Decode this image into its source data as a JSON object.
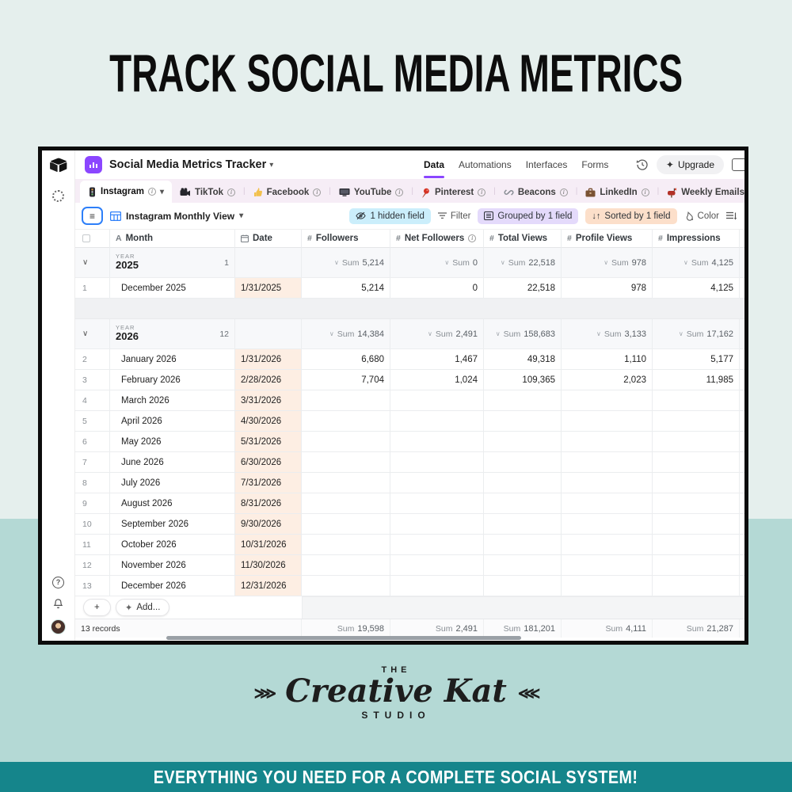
{
  "title": "TRACK SOCIAL MEDIA METRICS",
  "banner": "EVERYTHING YOU NEED FOR A COMPLETE SOCIAL SYSTEM!",
  "logo": {
    "the": "THE",
    "name": "Creative Kat",
    "studio": "STUDIO"
  },
  "colors": {
    "accent_purple": "#8b46ff",
    "accent_blue": "#2d7ff9",
    "teal_banner": "#15858b",
    "bg_top": "#e5efed",
    "bg_bottom": "#b4d9d5",
    "pill_hidden": "#cbeefb",
    "pill_grouped": "#e4dafb",
    "pill_sorted": "#fcdfca",
    "date_cell": "#fdeee3"
  },
  "app": {
    "name": "Social Media Metrics Tracker",
    "nav": [
      "Data",
      "Automations",
      "Interfaces",
      "Forms"
    ],
    "active_nav": "Data",
    "history_icon": "history-icon",
    "upgrade_label": "Upgrade",
    "tabs": [
      {
        "label": "Instagram",
        "icon": "instagram-icon",
        "active": true
      },
      {
        "label": "TikTok",
        "icon": "tiktok-icon"
      },
      {
        "label": "Facebook",
        "icon": "facebook-icon"
      },
      {
        "label": "YouTube",
        "icon": "youtube-icon"
      },
      {
        "label": "Pinterest",
        "icon": "pinterest-icon"
      },
      {
        "label": "Beacons",
        "icon": "beacons-icon"
      },
      {
        "label": "LinkedIn",
        "icon": "linkedin-icon"
      },
      {
        "label": "Weekly Emails",
        "icon": "weekly-emails-icon"
      }
    ],
    "toolbar": {
      "view_name": "Instagram Monthly View",
      "hidden_fields": "1 hidden field",
      "filter": "Filter",
      "grouped": "Grouped by 1 field",
      "sorted": "Sorted by 1 field",
      "color": "Color"
    },
    "table": {
      "columns": [
        {
          "label": "Month",
          "icon": "text-icon"
        },
        {
          "label": "Date",
          "icon": "calendar-icon"
        },
        {
          "label": "Followers",
          "icon": "number-icon"
        },
        {
          "label": "Net Followers",
          "icon": "number-icon",
          "info": true
        },
        {
          "label": "Total Views",
          "icon": "number-icon"
        },
        {
          "label": "Profile Views",
          "icon": "number-icon"
        },
        {
          "label": "Impressions",
          "icon": "number-icon"
        }
      ],
      "groups": [
        {
          "group_label": "YEAR",
          "year": "2025",
          "count": "1",
          "sums": [
            "Sum 5,214",
            "Sum 0",
            "Sum 22,518",
            "Sum 978",
            "Sum 4,125"
          ],
          "rows": [
            {
              "num": "1",
              "month": "December 2025",
              "date": "1/31/2025",
              "values": [
                "5,214",
                "0",
                "22,518",
                "978",
                "4,125"
              ]
            }
          ]
        },
        {
          "group_label": "YEAR",
          "year": "2026",
          "count": "12",
          "sums": [
            "Sum 14,384",
            "Sum 2,491",
            "Sum 158,683",
            "Sum 3,133",
            "Sum 17,162"
          ],
          "rows": [
            {
              "num": "2",
              "month": "January 2026",
              "date": "1/31/2026",
              "values": [
                "6,680",
                "1,467",
                "49,318",
                "1,110",
                "5,177"
              ]
            },
            {
              "num": "3",
              "month": "February 2026",
              "date": "2/28/2026",
              "values": [
                "7,704",
                "1,024",
                "109,365",
                "2,023",
                "11,985"
              ]
            },
            {
              "num": "4",
              "month": "March 2026",
              "date": "3/31/2026",
              "values": [
                "",
                "",
                "",
                "",
                ""
              ]
            },
            {
              "num": "5",
              "month": "April 2026",
              "date": "4/30/2026",
              "values": [
                "",
                "",
                "",
                "",
                ""
              ]
            },
            {
              "num": "6",
              "month": "May 2026",
              "date": "5/31/2026",
              "values": [
                "",
                "",
                "",
                "",
                ""
              ]
            },
            {
              "num": "7",
              "month": "June 2026",
              "date": "6/30/2026",
              "values": [
                "",
                "",
                "",
                "",
                ""
              ]
            },
            {
              "num": "8",
              "month": "July 2026",
              "date": "7/31/2026",
              "values": [
                "",
                "",
                "",
                "",
                ""
              ]
            },
            {
              "num": "9",
              "month": "August 2026",
              "date": "8/31/2026",
              "values": [
                "",
                "",
                "",
                "",
                ""
              ]
            },
            {
              "num": "10",
              "month": "September 2026",
              "date": "9/30/2026",
              "values": [
                "",
                "",
                "",
                "",
                ""
              ]
            },
            {
              "num": "11",
              "month": "October 2026",
              "date": "10/31/2026",
              "values": [
                "",
                "",
                "",
                "",
                ""
              ]
            },
            {
              "num": "12",
              "month": "November 2026",
              "date": "11/30/2026",
              "values": [
                "",
                "",
                "",
                "",
                ""
              ]
            },
            {
              "num": "13",
              "month": "December 2026",
              "date": "12/31/2026",
              "values": [
                "",
                "",
                "",
                "",
                ""
              ]
            }
          ]
        }
      ],
      "footer": {
        "records": "13 records",
        "add_label": "Add...",
        "sums": [
          "Sum 19,598",
          "Sum 2,491",
          "Sum 181,201",
          "Sum 4,111",
          "Sum 21,287"
        ]
      }
    }
  }
}
